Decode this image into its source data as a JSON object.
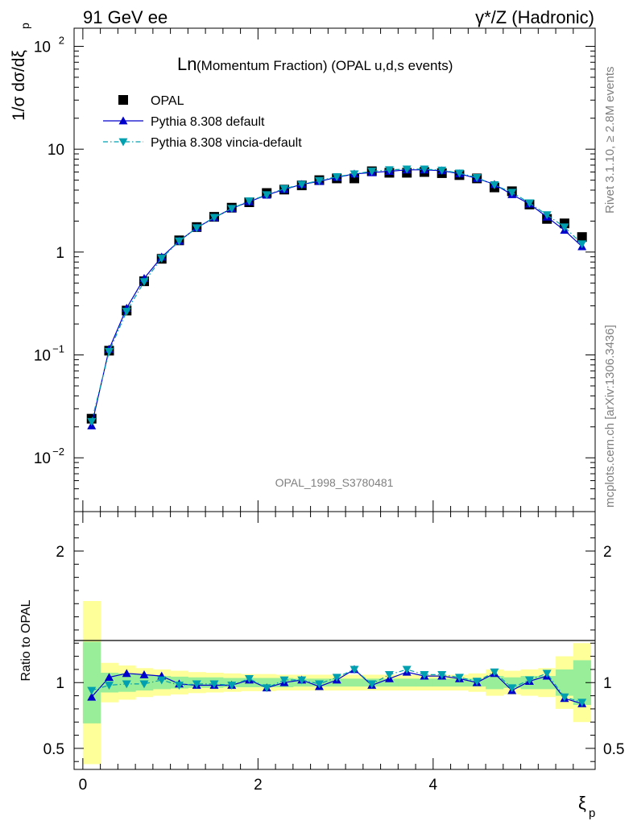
{
  "header": {
    "left": "91 GeV ee",
    "right": "γ*/Z (Hadronic)"
  },
  "side_labels": {
    "rivet": "Rivet 3.1.10, ≥ 2.8M events",
    "mcplots": "mcplots.cern.ch [arXiv:1306.3436]"
  },
  "chart_data": [
    {
      "type": "line",
      "title_big": "Ln",
      "title_rest": "(Momentum Fraction) (OPAL u,d,s events)",
      "watermark": "OPAL_1998_S3780481",
      "ylabel": "1/σ dσ/dξ",
      "ylabel_sub": "p",
      "yscale": "log",
      "ylim": [
        0.003,
        150
      ],
      "xlim": [
        -0.1,
        5.85
      ],
      "ytick_labels": [
        {
          "value": 0.01,
          "base": "10",
          "exp": "−2"
        },
        {
          "value": 0.1,
          "base": "10",
          "exp": "−1"
        },
        {
          "value": 1,
          "base": "1",
          "exp": ""
        },
        {
          "value": 10,
          "base": "10",
          "exp": ""
        },
        {
          "value": 100,
          "base": "10",
          "exp": "2"
        }
      ],
      "legend_position": "top-left",
      "x": [
        0.1,
        0.3,
        0.5,
        0.7,
        0.9,
        1.1,
        1.3,
        1.5,
        1.7,
        1.9,
        2.1,
        2.3,
        2.5,
        2.7,
        2.9,
        3.1,
        3.3,
        3.5,
        3.7,
        3.9,
        4.1,
        4.3,
        4.5,
        4.7,
        4.9,
        5.1,
        5.3,
        5.5,
        5.7
      ],
      "series": [
        {
          "name": "OPAL",
          "color": "#000000",
          "marker": "square",
          "values": [
            0.024,
            0.11,
            0.27,
            0.52,
            0.86,
            1.3,
            1.75,
            2.2,
            2.7,
            3.05,
            3.75,
            4.05,
            4.45,
            5.0,
            5.2,
            5.2,
            6.1,
            5.9,
            5.9,
            6.0,
            5.85,
            5.6,
            5.2,
            4.25,
            3.9,
            2.9,
            2.1,
            1.9,
            1.4
          ]
        },
        {
          "name": "Pythia 8.308 default",
          "color": "#0000cc",
          "marker": "triangle-up",
          "line": "solid",
          "values": [
            0.0205,
            0.114,
            0.285,
            0.555,
            0.895,
            1.28,
            1.72,
            2.16,
            2.65,
            3.09,
            3.58,
            4.06,
            4.55,
            4.87,
            5.33,
            5.75,
            5.92,
            6.1,
            6.3,
            6.3,
            6.18,
            5.77,
            5.2,
            4.55,
            3.62,
            2.94,
            2.19,
            1.63,
            1.13
          ]
        },
        {
          "name": "Pythia 8.308 vincia-default",
          "color": "#00a0b0",
          "marker": "triangle-down",
          "line": "dashdot",
          "values": [
            0.0225,
            0.108,
            0.265,
            0.515,
            0.87,
            1.28,
            1.72,
            2.17,
            2.65,
            3.14,
            3.6,
            4.13,
            4.55,
            4.95,
            5.4,
            5.75,
            6.1,
            6.3,
            6.4,
            6.4,
            6.25,
            5.85,
            5.3,
            4.5,
            3.8,
            3.0,
            2.3,
            1.75,
            1.2
          ]
        }
      ]
    },
    {
      "type": "line",
      "ylabel": "Ratio to OPAL",
      "xlabel": "ξ",
      "xlabel_sub": "p",
      "ylim": [
        0.34,
        2.3
      ],
      "xlim": [
        -0.1,
        5.85
      ],
      "yticks": [
        0.5,
        1,
        2
      ],
      "ytick_labels": [
        "0.5",
        "1",
        "2"
      ],
      "xticks": [
        0,
        2,
        4
      ],
      "xtick_labels": [
        "0",
        "2",
        "4"
      ],
      "bands": {
        "x_edges": [
          0.0,
          0.2,
          0.4,
          0.6,
          0.8,
          1.0,
          1.2,
          1.4,
          1.6,
          1.8,
          2.0,
          2.2,
          2.4,
          2.6,
          2.8,
          3.0,
          3.2,
          3.4,
          3.6,
          3.8,
          4.0,
          4.2,
          4.4,
          4.6,
          4.8,
          5.0,
          5.2,
          5.4,
          5.6,
          5.8
        ],
        "inner_color": "#99ee99",
        "outer_color": "#ffff99",
        "inner_half_width": [
          0.31,
          0.075,
          0.07,
          0.06,
          0.05,
          0.045,
          0.04,
          0.04,
          0.035,
          0.035,
          0.035,
          0.035,
          0.03,
          0.03,
          0.03,
          0.03,
          0.03,
          0.03,
          0.03,
          0.03,
          0.03,
          0.03,
          0.03,
          0.05,
          0.04,
          0.05,
          0.05,
          0.1,
          0.17
        ],
        "outer_half_width": [
          0.62,
          0.15,
          0.13,
          0.11,
          0.1,
          0.09,
          0.08,
          0.075,
          0.07,
          0.065,
          0.065,
          0.06,
          0.06,
          0.06,
          0.06,
          0.06,
          0.06,
          0.06,
          0.06,
          0.06,
          0.06,
          0.06,
          0.07,
          0.1,
          0.09,
          0.1,
          0.11,
          0.2,
          0.3
        ]
      },
      "x": [
        0.1,
        0.3,
        0.5,
        0.7,
        0.9,
        1.1,
        1.3,
        1.5,
        1.7,
        1.9,
        2.1,
        2.3,
        2.5,
        2.7,
        2.9,
        3.1,
        3.3,
        3.5,
        3.7,
        3.9,
        4.1,
        4.3,
        4.5,
        4.7,
        4.9,
        5.1,
        5.3,
        5.5,
        5.7
      ],
      "series": [
        {
          "name": "Pythia 8.308 default",
          "color": "#0000cc",
          "marker": "triangle-up",
          "line": "solid",
          "values": [
            0.89,
            1.04,
            1.07,
            1.06,
            1.05,
            0.99,
            0.98,
            0.98,
            0.98,
            1.02,
            0.96,
            1.0,
            1.02,
            0.97,
            1.02,
            1.1,
            0.98,
            1.03,
            1.08,
            1.05,
            1.05,
            1.03,
            1.0,
            1.07,
            0.94,
            1.01,
            1.05,
            0.88,
            0.84
          ]
        },
        {
          "name": "Pythia 8.308 vincia-default",
          "color": "#00a0b0",
          "marker": "triangle-down",
          "line": "dashdot",
          "values": [
            0.94,
            0.98,
            0.99,
            0.99,
            1.02,
            0.98,
            0.99,
            0.99,
            0.98,
            1.03,
            0.96,
            1.02,
            1.02,
            0.99,
            1.04,
            1.1,
            0.99,
            1.06,
            1.1,
            1.06,
            1.06,
            1.04,
            1.01,
            1.08,
            0.96,
            1.02,
            1.07,
            0.89,
            0.85
          ]
        }
      ]
    }
  ]
}
